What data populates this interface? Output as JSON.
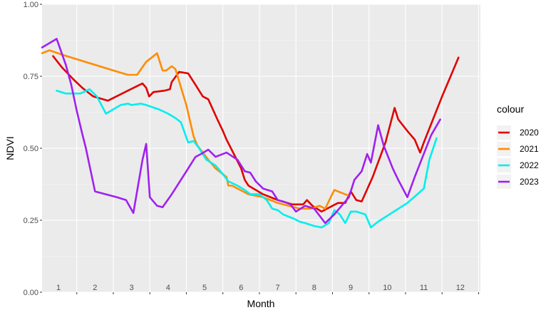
{
  "chart_data": {
    "type": "line",
    "xlabel": "Month",
    "ylabel": "NDVI",
    "ylim": [
      0,
      1
    ],
    "yticks": [
      "0.00",
      "0.25",
      "0.50",
      "0.75",
      "1.00"
    ],
    "xlim": [
      0.55,
      12.55
    ],
    "x_category_labels": [
      "1",
      "2",
      "3",
      "4",
      "5",
      "6",
      "7",
      "8",
      "9",
      "10",
      "11",
      "12"
    ],
    "legend_title": "colour",
    "legend_position": "right",
    "grid": true,
    "series": [
      {
        "name": "2020",
        "color": "#e00000",
        "points": [
          [
            0.85,
            0.82
          ],
          [
            1.1,
            0.78
          ],
          [
            1.4,
            0.74
          ],
          [
            1.65,
            0.71
          ],
          [
            1.95,
            0.68
          ],
          [
            2.35,
            0.665
          ],
          [
            2.9,
            0.7
          ],
          [
            3.3,
            0.725
          ],
          [
            3.4,
            0.71
          ],
          [
            3.48,
            0.68
          ],
          [
            3.6,
            0.695
          ],
          [
            3.9,
            0.7
          ],
          [
            4.05,
            0.705
          ],
          [
            4.1,
            0.73
          ],
          [
            4.3,
            0.765
          ],
          [
            4.55,
            0.76
          ],
          [
            4.75,
            0.72
          ],
          [
            4.95,
            0.68
          ],
          [
            5.1,
            0.67
          ],
          [
            5.35,
            0.6
          ],
          [
            5.5,
            0.56
          ],
          [
            5.6,
            0.53
          ],
          [
            5.8,
            0.48
          ],
          [
            6.0,
            0.43
          ],
          [
            6.1,
            0.39
          ],
          [
            6.2,
            0.37
          ],
          [
            6.6,
            0.34
          ],
          [
            7.0,
            0.32
          ],
          [
            7.4,
            0.305
          ],
          [
            7.7,
            0.305
          ],
          [
            7.8,
            0.32
          ],
          [
            7.95,
            0.3
          ],
          [
            8.2,
            0.28
          ],
          [
            8.5,
            0.3
          ],
          [
            8.65,
            0.31
          ],
          [
            8.85,
            0.31
          ],
          [
            9.0,
            0.35
          ],
          [
            9.15,
            0.32
          ],
          [
            9.3,
            0.315
          ],
          [
            9.6,
            0.4
          ],
          [
            9.95,
            0.52
          ],
          [
            10.2,
            0.64
          ],
          [
            10.3,
            0.6
          ],
          [
            10.55,
            0.56
          ],
          [
            10.75,
            0.53
          ],
          [
            10.9,
            0.485
          ],
          [
            11.0,
            0.52
          ],
          [
            11.25,
            0.6
          ],
          [
            11.5,
            0.68
          ],
          [
            11.9,
            0.8
          ],
          [
            11.95,
            0.815
          ]
        ]
      },
      {
        "name": "2021",
        "color": "#ff8c00",
        "points": [
          [
            0.55,
            0.83
          ],
          [
            0.75,
            0.84
          ],
          [
            1.1,
            0.825
          ],
          [
            2.5,
            0.77
          ],
          [
            2.9,
            0.755
          ],
          [
            3.15,
            0.755
          ],
          [
            3.4,
            0.8
          ],
          [
            3.7,
            0.83
          ],
          [
            3.85,
            0.77
          ],
          [
            3.95,
            0.77
          ],
          [
            4.1,
            0.785
          ],
          [
            4.2,
            0.775
          ],
          [
            4.5,
            0.65
          ],
          [
            4.7,
            0.54
          ],
          [
            4.8,
            0.51
          ],
          [
            5.1,
            0.46
          ],
          [
            5.3,
            0.43
          ],
          [
            5.6,
            0.4
          ],
          [
            5.65,
            0.37
          ],
          [
            5.75,
            0.37
          ],
          [
            6.2,
            0.34
          ],
          [
            6.6,
            0.33
          ],
          [
            7.0,
            0.31
          ],
          [
            7.3,
            0.3
          ],
          [
            7.6,
            0.29
          ],
          [
            7.9,
            0.29
          ],
          [
            8.15,
            0.3
          ],
          [
            8.3,
            0.29
          ],
          [
            8.55,
            0.355
          ],
          [
            8.75,
            0.345
          ],
          [
            8.95,
            0.335
          ]
        ]
      },
      {
        "name": "2022",
        "color": "#00eeee",
        "points": [
          [
            0.95,
            0.7
          ],
          [
            1.2,
            0.69
          ],
          [
            1.6,
            0.69
          ],
          [
            1.85,
            0.705
          ],
          [
            2.05,
            0.68
          ],
          [
            2.3,
            0.62
          ],
          [
            2.5,
            0.635
          ],
          [
            2.7,
            0.65
          ],
          [
            2.9,
            0.655
          ],
          [
            3.0,
            0.65
          ],
          [
            3.25,
            0.655
          ],
          [
            3.4,
            0.65
          ],
          [
            3.75,
            0.635
          ],
          [
            4.0,
            0.62
          ],
          [
            4.2,
            0.605
          ],
          [
            4.35,
            0.59
          ],
          [
            4.55,
            0.52
          ],
          [
            4.7,
            0.525
          ],
          [
            4.85,
            0.5
          ],
          [
            5.05,
            0.46
          ],
          [
            5.3,
            0.44
          ],
          [
            5.5,
            0.41
          ],
          [
            5.65,
            0.385
          ],
          [
            5.9,
            0.37
          ],
          [
            6.1,
            0.355
          ],
          [
            6.25,
            0.34
          ],
          [
            6.5,
            0.34
          ],
          [
            6.7,
            0.32
          ],
          [
            6.85,
            0.29
          ],
          [
            7.0,
            0.285
          ],
          [
            7.15,
            0.27
          ],
          [
            7.45,
            0.255
          ],
          [
            7.6,
            0.245
          ],
          [
            7.75,
            0.24
          ],
          [
            8.0,
            0.23
          ],
          [
            8.2,
            0.225
          ],
          [
            8.4,
            0.24
          ],
          [
            8.55,
            0.285
          ],
          [
            8.7,
            0.27
          ],
          [
            8.85,
            0.24
          ],
          [
            9.0,
            0.28
          ],
          [
            9.15,
            0.28
          ],
          [
            9.4,
            0.27
          ],
          [
            9.55,
            0.225
          ],
          [
            9.75,
            0.245
          ],
          [
            10.55,
            0.31
          ],
          [
            11.0,
            0.36
          ],
          [
            11.15,
            0.46
          ],
          [
            11.35,
            0.535
          ]
        ]
      },
      {
        "name": "2023",
        "color": "#a020f0",
        "points": [
          [
            0.55,
            0.85
          ],
          [
            0.95,
            0.88
          ],
          [
            1.2,
            0.79
          ],
          [
            1.35,
            0.72
          ],
          [
            1.5,
            0.63
          ],
          [
            1.65,
            0.55
          ],
          [
            1.75,
            0.5
          ],
          [
            2.0,
            0.35
          ],
          [
            2.6,
            0.33
          ],
          [
            2.85,
            0.32
          ],
          [
            3.05,
            0.275
          ],
          [
            3.3,
            0.46
          ],
          [
            3.4,
            0.515
          ],
          [
            3.5,
            0.33
          ],
          [
            3.7,
            0.3
          ],
          [
            3.85,
            0.295
          ],
          [
            4.1,
            0.34
          ],
          [
            4.45,
            0.41
          ],
          [
            4.75,
            0.47
          ],
          [
            4.9,
            0.48
          ],
          [
            5.1,
            0.495
          ],
          [
            5.3,
            0.47
          ],
          [
            5.6,
            0.485
          ],
          [
            5.9,
            0.46
          ],
          [
            6.1,
            0.42
          ],
          [
            6.25,
            0.415
          ],
          [
            6.4,
            0.385
          ],
          [
            6.6,
            0.36
          ],
          [
            6.85,
            0.35
          ],
          [
            7.0,
            0.32
          ],
          [
            7.15,
            0.315
          ],
          [
            7.35,
            0.305
          ],
          [
            7.5,
            0.28
          ],
          [
            7.75,
            0.3
          ],
          [
            8.0,
            0.29
          ],
          [
            8.3,
            0.24
          ],
          [
            8.55,
            0.27
          ],
          [
            8.75,
            0.3
          ],
          [
            8.95,
            0.33
          ],
          [
            9.1,
            0.39
          ],
          [
            9.3,
            0.42
          ],
          [
            9.45,
            0.48
          ],
          [
            9.55,
            0.45
          ],
          [
            9.75,
            0.58
          ],
          [
            9.9,
            0.51
          ],
          [
            10.15,
            0.43
          ],
          [
            10.3,
            0.39
          ],
          [
            10.55,
            0.33
          ],
          [
            10.75,
            0.4
          ],
          [
            11.2,
            0.545
          ],
          [
            11.45,
            0.6
          ]
        ]
      }
    ]
  }
}
